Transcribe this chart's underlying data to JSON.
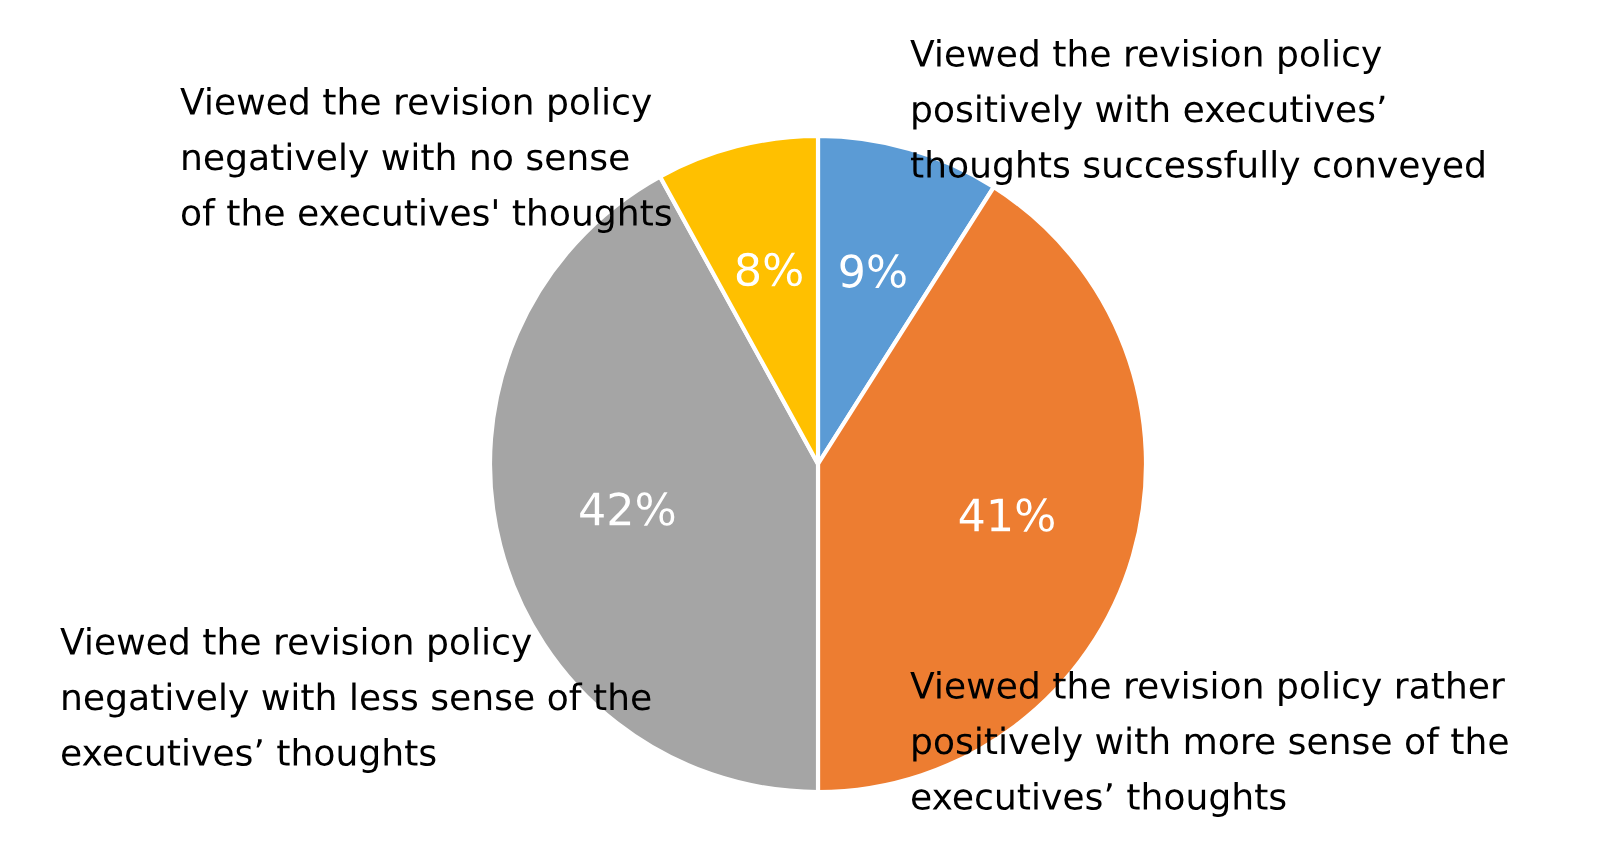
{
  "chart_data": {
    "type": "pie",
    "categories": [
      "Viewed the revision policy\npositively with executives’\nthoughts successfully conveyed",
      "Viewed the revision policy rather\npositively with more sense of the\nexecutives’ thoughts",
      "Viewed the revision policy\nnegatively with less sense of the\nexecutives’ thoughts",
      "Viewed the revision policy\nnegatively with no sense\nof the executives' thoughts"
    ],
    "values": [
      9,
      41,
      42,
      8
    ],
    "colors": [
      "#5b9bd5",
      "#ed7d31",
      "#a5a5a5",
      "#ffc000"
    ],
    "value_labels": [
      "9%",
      "41%",
      "42%",
      "8%"
    ]
  }
}
